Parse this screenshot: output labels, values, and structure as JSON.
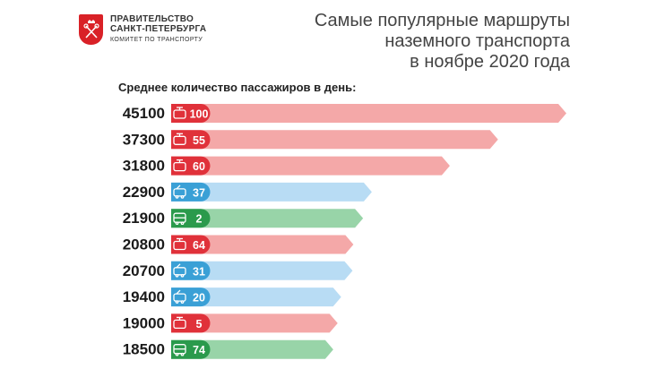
{
  "header": {
    "org_line1": "ПРАВИТЕЛЬСТВО",
    "org_line2": "САНКТ-ПЕТЕРБУРГА",
    "org_line3": "КОМИТЕТ ПО ТРАНСПОРТУ",
    "emblem_icon": "keys-crown-emblem-icon"
  },
  "title_lines": [
    "Самые популярные маршруты",
    "наземного транспорта",
    "в ноябре 2020 года"
  ],
  "subtitle": "Среднее количество пассажиров в день:",
  "chart_data": {
    "type": "bar",
    "orientation": "horizontal",
    "categories": [
      "100",
      "55",
      "60",
      "37",
      "2",
      "64",
      "31",
      "20",
      "5",
      "74"
    ],
    "values": [
      45100,
      37300,
      31800,
      22900,
      21900,
      20800,
      20700,
      19400,
      19000,
      18500
    ],
    "vehicle_types": [
      "tram",
      "tram",
      "tram",
      "trolleybus",
      "bus",
      "tram",
      "trolleybus",
      "trolleybus",
      "tram",
      "bus"
    ],
    "vehicle_icons": {
      "tram": "tram-icon",
      "trolleybus": "trolleybus-icon",
      "bus": "bus-icon"
    },
    "colors": {
      "tram": {
        "bar": "#f4a8a8",
        "badge": "#e0313a"
      },
      "trolleybus": {
        "bar": "#b8dcf4",
        "badge": "#3aa0d6"
      },
      "bus": {
        "bar": "#98d4a8",
        "badge": "#2a9a4c"
      }
    },
    "xlim": [
      0,
      45100
    ],
    "axes_shown": false,
    "grid": false,
    "legend": "none"
  }
}
